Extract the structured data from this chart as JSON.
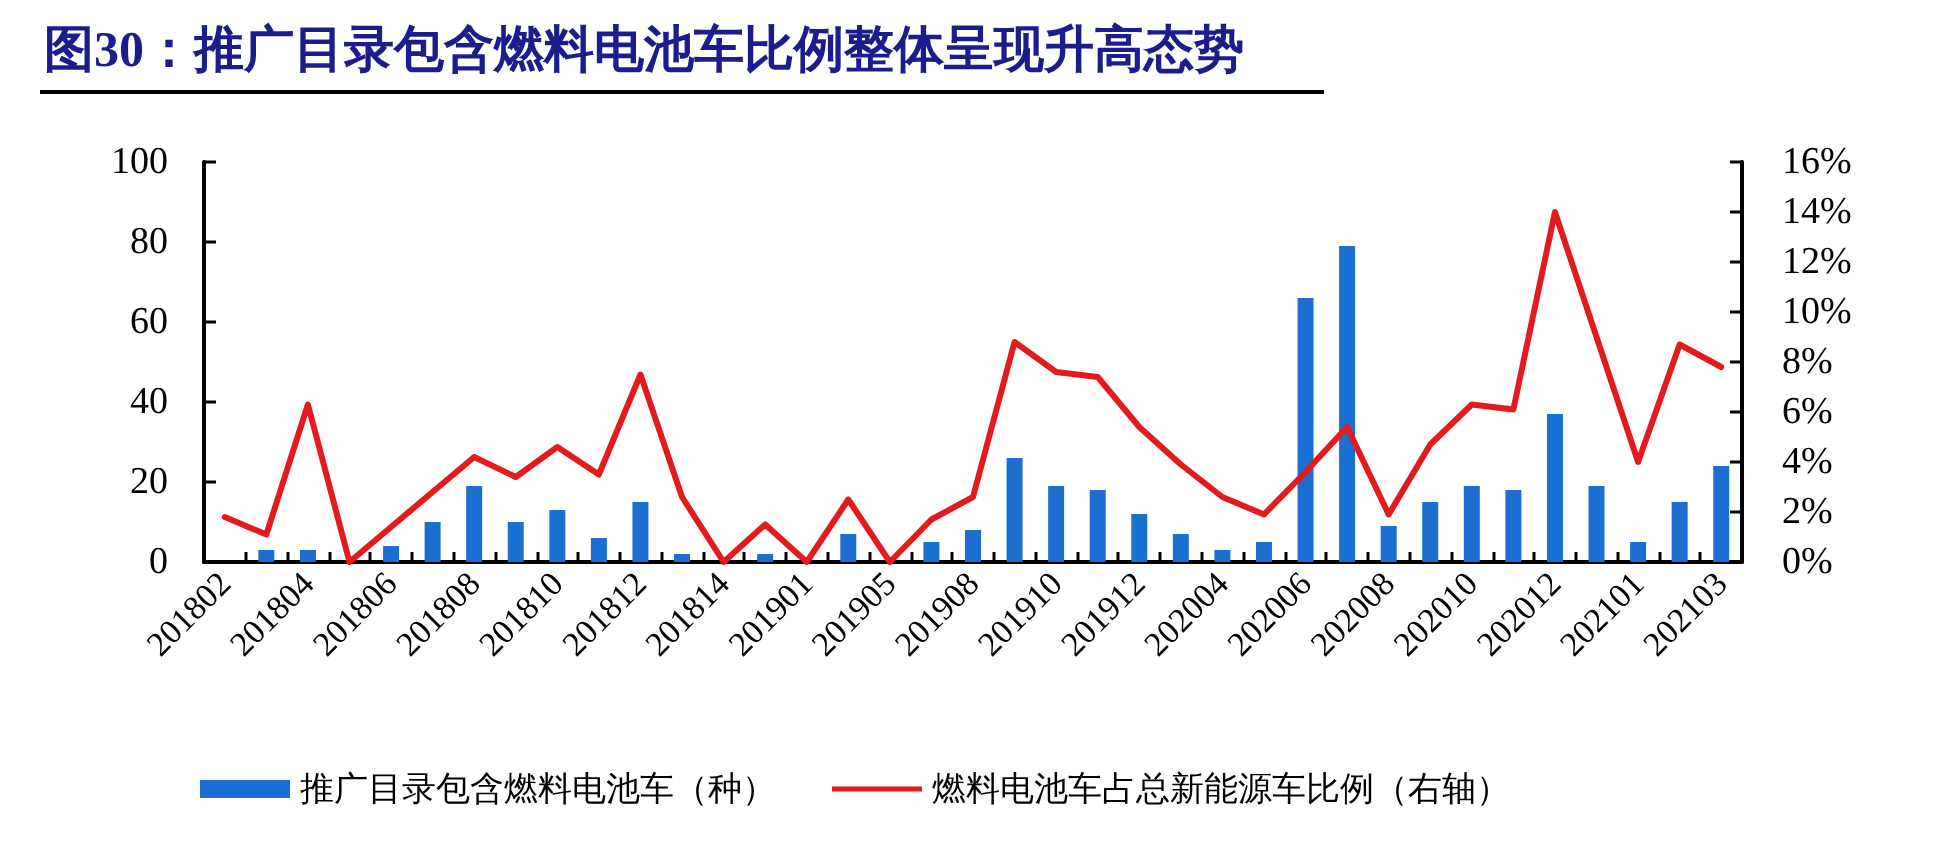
{
  "chart_data": {
    "type": "bar",
    "title": "图30：推广目录包含燃料电池车比例整体呈现升高态势",
    "categories": [
      "201802",
      null,
      "201804",
      null,
      "201806",
      null,
      "201808",
      null,
      "201810",
      null,
      "201812",
      null,
      "201814",
      null,
      "201901",
      null,
      "201905",
      null,
      "201908",
      null,
      "201910",
      null,
      "201912",
      null,
      "202004",
      null,
      "202006",
      null,
      "202008",
      null,
      "202010",
      null,
      "202012",
      null,
      "202101",
      null,
      "202103"
    ],
    "series": [
      {
        "name": "推广目录包含燃料电池车（种）",
        "color": "#1b6fd0",
        "values": [
          0,
          3,
          3,
          0,
          4,
          10,
          19,
          10,
          13,
          6,
          15,
          2,
          0,
          2,
          0,
          7,
          0,
          5,
          8,
          26,
          19,
          18,
          12,
          7,
          3,
          5,
          66,
          79,
          9,
          15,
          19,
          18,
          37,
          19,
          5,
          15,
          24
        ]
      },
      {
        "name": "燃料电池车占总新能源车比例（右轴）",
        "type": "line",
        "axis": "y2",
        "color": "#e31b1f",
        "values": [
          1.8,
          1.1,
          6.3,
          0,
          1.4,
          2.8,
          4.2,
          3.4,
          4.6,
          3.5,
          7.5,
          2.6,
          0,
          1.5,
          0,
          2.5,
          0,
          1.7,
          2.6,
          8.8,
          7.6,
          7.4,
          5.4,
          3.9,
          2.6,
          1.9,
          3.6,
          5.4,
          1.9,
          4.7,
          6.3,
          6.1,
          14.0,
          9.0,
          4.0,
          8.7,
          7.8
        ]
      }
    ],
    "ylim": [
      0,
      100
    ],
    "yticks": [
      0,
      20,
      40,
      60,
      80,
      100
    ],
    "y2lim": [
      0,
      16
    ],
    "y2ticks": [
      {
        "value": 0,
        "label": "0%"
      },
      {
        "value": 2,
        "label": "2%"
      },
      {
        "value": 4,
        "label": "4%"
      },
      {
        "value": 6,
        "label": "6%"
      },
      {
        "value": 8,
        "label": "8%"
      },
      {
        "value": 10,
        "label": "10%"
      },
      {
        "value": 12,
        "label": "12%"
      },
      {
        "value": 14,
        "label": "14%"
      },
      {
        "value": 16,
        "label": "16%"
      }
    ],
    "grid": false,
    "legend": "bottom",
    "marker": "none",
    "line_style": "solid"
  }
}
